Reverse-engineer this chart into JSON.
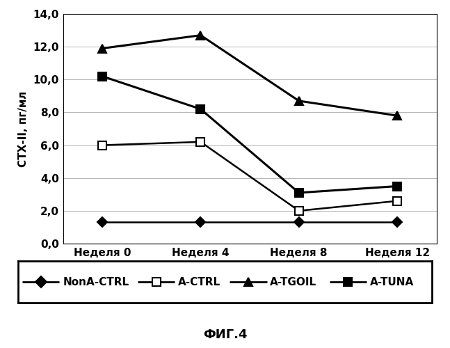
{
  "x_labels": [
    "Неделя 0",
    "Неделя 4",
    "Неделя 8",
    "Неделя 12"
  ],
  "x_positions": [
    0,
    1,
    2,
    3
  ],
  "series": [
    {
      "name": "NonA-CTRL",
      "values": [
        1.3,
        1.3,
        1.3,
        1.3
      ],
      "color": "#000000",
      "marker": "D",
      "markersize": 7,
      "linewidth": 1.8,
      "markerfacecolor": "#000000"
    },
    {
      "name": "A-CTRL",
      "values": [
        6.0,
        6.2,
        2.0,
        2.6
      ],
      "color": "#000000",
      "marker": "s",
      "markersize": 8,
      "linewidth": 1.8,
      "markerfacecolor": "#ffffff"
    },
    {
      "name": "A-TGOIL",
      "values": [
        11.9,
        12.7,
        8.7,
        7.8
      ],
      "color": "#000000",
      "marker": "^",
      "markersize": 9,
      "linewidth": 2.2,
      "markerfacecolor": "#000000"
    },
    {
      "name": "A-TUNA",
      "values": [
        10.2,
        8.2,
        3.1,
        3.5
      ],
      "color": "#000000",
      "marker": "s",
      "markersize": 8,
      "linewidth": 2.2,
      "markerfacecolor": "#000000"
    }
  ],
  "ylabel": "СТХ-II, пг/мл",
  "ylim": [
    0.0,
    14.0
  ],
  "yticks": [
    0.0,
    2.0,
    4.0,
    6.0,
    8.0,
    10.0,
    12.0,
    14.0
  ],
  "caption": "ФИГ.4",
  "background_color": "#ffffff",
  "plot_bg_color": "#f5f5f5",
  "axis_fontsize": 11,
  "tick_fontsize": 11,
  "legend_fontsize": 11,
  "caption_fontsize": 13
}
